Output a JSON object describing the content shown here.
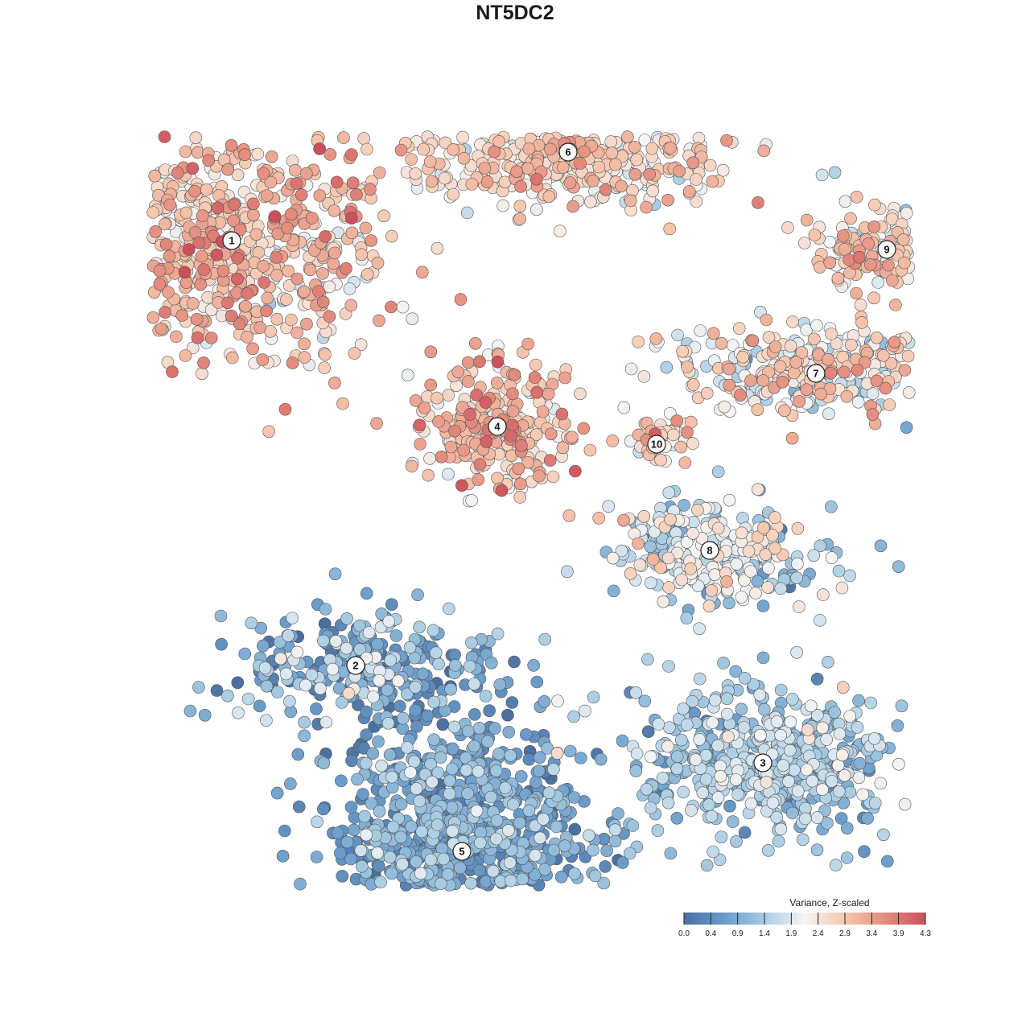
{
  "chart_data": {
    "type": "scatter",
    "title": "NT5DC2",
    "xlabel": "",
    "ylabel": "",
    "grid": false,
    "colorbar": {
      "title": "Variance, Z-scaled",
      "ticks": [
        "0.0",
        "0.4",
        "0.9",
        "1.4",
        "1.9",
        "2.4",
        "2.9",
        "3.4",
        "3.9",
        "4.3"
      ],
      "min": 0.0,
      "max": 4.3,
      "colors": [
        "#4a6fa0",
        "#6a9ccb",
        "#a9cde3",
        "#f4f4f4",
        "#f6c7ae",
        "#e48d7e",
        "#cc4f5c"
      ],
      "placement": "bottom-right"
    },
    "clusters": [
      {
        "label": "1",
        "x": -3.2,
        "y": 3.1,
        "sx": 1.6,
        "sy": 1.35,
        "n": 700,
        "mean": 2.9,
        "sd": 0.55
      },
      {
        "label": "2",
        "x": -1.8,
        "y": -1.7,
        "sx": 1.25,
        "sy": 0.6,
        "n": 280,
        "mean": 1.0,
        "sd": 0.6
      },
      {
        "label": "3",
        "x": 2.8,
        "y": -2.8,
        "sx": 1.35,
        "sy": 0.8,
        "n": 550,
        "mean": 1.35,
        "sd": 0.45
      },
      {
        "label": "4",
        "x": -0.2,
        "y": 1.0,
        "sx": 0.75,
        "sy": 0.7,
        "n": 280,
        "mean": 2.9,
        "sd": 0.5
      },
      {
        "label": "5",
        "x": -0.6,
        "y": -3.8,
        "sx": 1.35,
        "sy": 1.45,
        "n": 1100,
        "mean": 0.85,
        "sd": 0.45
      },
      {
        "label": "6",
        "x": 0.6,
        "y": 4.1,
        "sx": 1.75,
        "sy": 0.55,
        "n": 500,
        "mean": 2.6,
        "sd": 0.45
      },
      {
        "label": "7",
        "x": 3.4,
        "y": 1.6,
        "sx": 1.5,
        "sy": 0.45,
        "n": 330,
        "mean": 2.3,
        "sd": 0.65
      },
      {
        "label": "8",
        "x": 2.2,
        "y": -0.4,
        "sx": 1.1,
        "sy": 0.55,
        "n": 280,
        "mean": 1.7,
        "sd": 0.6
      },
      {
        "label": "9",
        "x": 4.2,
        "y": 3.0,
        "sx": 0.8,
        "sy": 0.45,
        "n": 170,
        "mean": 2.6,
        "sd": 0.5
      },
      {
        "label": "10",
        "x": 1.6,
        "y": 0.8,
        "sx": 0.3,
        "sy": 0.3,
        "n": 45,
        "mean": 2.5,
        "sd": 0.5
      }
    ]
  }
}
